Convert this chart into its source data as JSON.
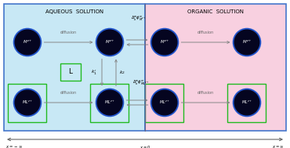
{
  "aqueous_bg": "#c8e8f5",
  "organic_bg": "#f8d0e0",
  "border_color": "#4477cc",
  "green_box_color": "#22bb22",
  "title_aqueous": "AQUEOUS  SOLUTION",
  "title_organic": "ORGANIC  SOLUTION",
  "label_xneg": "$x = -\\infty$",
  "label_x0": "$x = 0$",
  "label_xpos": "$x = \\infty$",
  "label_L": "L",
  "label_k1": "$k_1^{\\prime}$",
  "label_k2": "$k_2$",
  "label_phi_M": "$\\Delta_o^w\\phi_{M^{z+}}^{o\\prime}$",
  "label_phi_ML": "$\\Delta_o^w\\phi_{ML^{z+}}^{o\\prime}$",
  "label_diffusion": "diffusion",
  "label_M": "$M^{z+}$",
  "label_ML": "$ML^{z+}$"
}
